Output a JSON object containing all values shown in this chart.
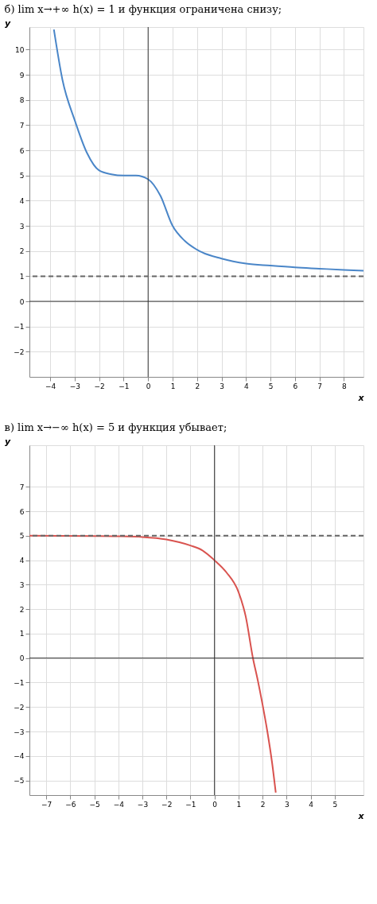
{
  "chart_data": [
    {
      "type": "line",
      "title": "б) lim x→+∞ h(x) = 1 и функция ограничена снизу;",
      "xlabel": "x",
      "ylabel": "y",
      "x": [
        -3.85,
        -3.5,
        -3,
        -2.5,
        -2,
        -1.5,
        -1,
        -0.5,
        0,
        0.5,
        1,
        1.5,
        2,
        3,
        4,
        5,
        6,
        7,
        8,
        8.8
      ],
      "series": [
        {
          "color": "#4a86c8",
          "values": [
            10.8,
            8.8,
            7.2,
            5.9,
            5.2,
            5.05,
            5.0,
            5.0,
            4.85,
            4.2,
            3.0,
            2.4,
            2.05,
            1.7,
            1.5,
            1.42,
            1.35,
            1.3,
            1.25,
            1.22
          ]
        }
      ],
      "xlim": [
        -4.85,
        8.8
      ],
      "ylim": [
        -3,
        10.9
      ],
      "xticks": [
        -4,
        -3,
        -2,
        -1,
        0,
        1,
        2,
        3,
        4,
        5,
        6,
        7,
        8
      ],
      "yticks": [
        -2,
        -1,
        0,
        1,
        2,
        3,
        4,
        5,
        6,
        7,
        8,
        9,
        10
      ],
      "ref_lines": [
        {
          "axis": "y",
          "value": 1,
          "color": "#666666",
          "line_style": "dashed"
        }
      ],
      "grid": true,
      "marker": "none",
      "line_style": "solid"
    },
    {
      "type": "line",
      "title": "в) lim x→−∞ h(x) = 5 и функция убывает;",
      "xlabel": "x",
      "ylabel": "y",
      "x": [
        -7.7,
        -5,
        -4,
        -3,
        -2,
        -1,
        -0.5,
        0,
        0.5,
        1,
        1.3,
        1.6,
        1.8,
        2,
        2.2,
        2.4,
        2.55
      ],
      "series": [
        {
          "color": "#d9534f",
          "values": [
            5.0,
            4.99,
            4.98,
            4.95,
            4.85,
            4.6,
            4.4,
            4.0,
            3.5,
            2.7,
            1.7,
            0,
            -0.9,
            -1.9,
            -3.0,
            -4.3,
            -5.5
          ]
        }
      ],
      "xlim": [
        -7.7,
        6.2
      ],
      "ylim": [
        -5.6,
        8.7
      ],
      "xticks": [
        -7,
        -6,
        -5,
        -4,
        -3,
        -2,
        -1,
        0,
        1,
        2,
        3,
        4,
        5
      ],
      "yticks": [
        -5,
        -4,
        -3,
        -2,
        -1,
        0,
        1,
        2,
        3,
        4,
        5,
        6,
        7
      ],
      "ref_lines": [
        {
          "axis": "y",
          "value": 5,
          "color": "#666666",
          "line_style": "dashed"
        }
      ],
      "grid": true,
      "marker": "none",
      "line_style": "solid"
    }
  ]
}
